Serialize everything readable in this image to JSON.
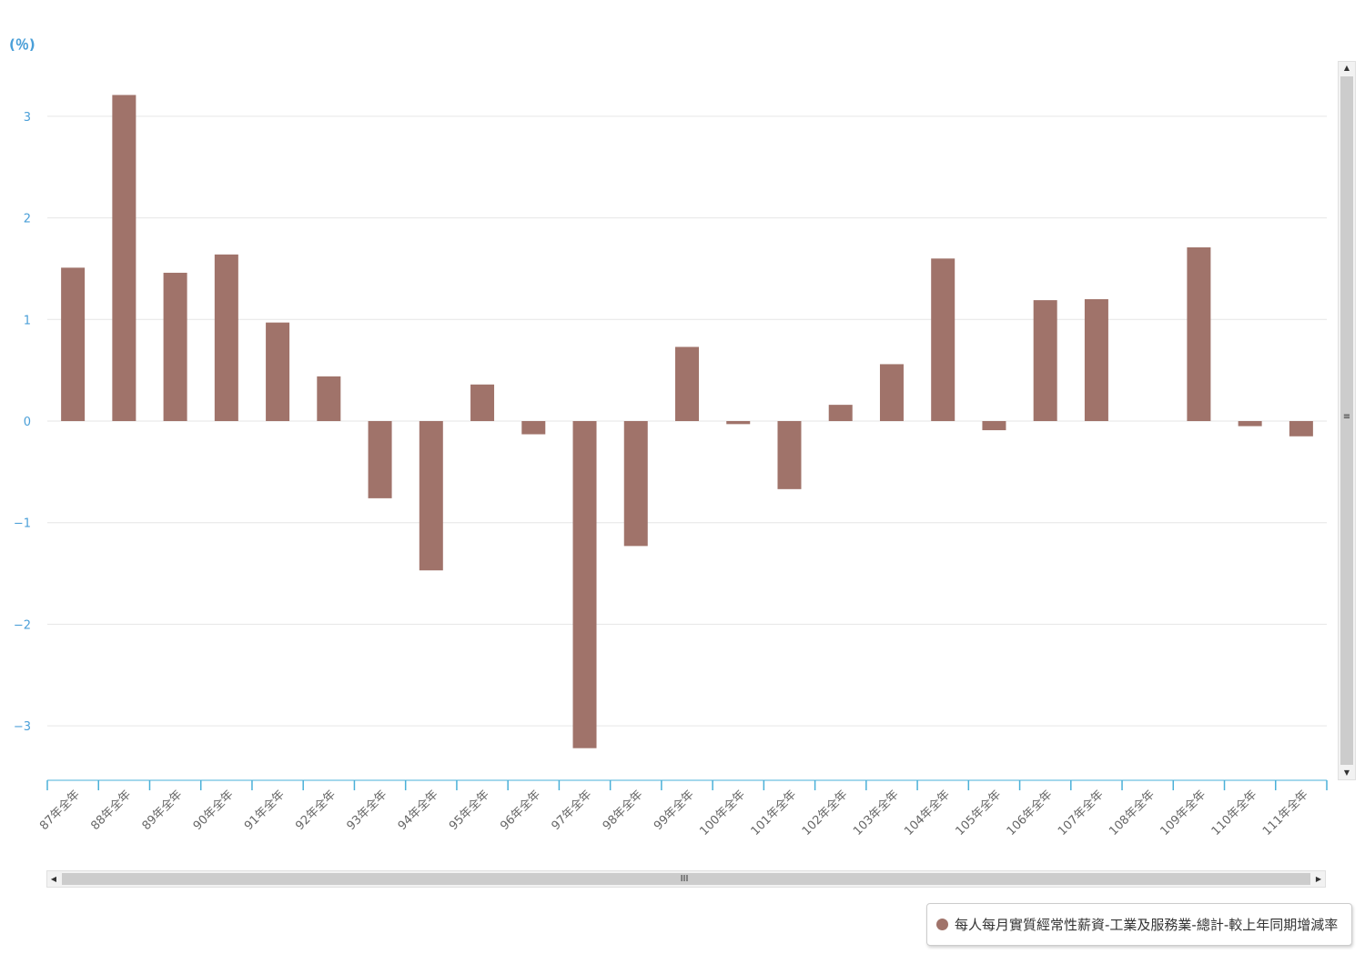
{
  "colors": {
    "bar": "#a0736a",
    "axis_text": "#4a9fd8",
    "axis_line": "#4ab0d8",
    "grid": "#e6e6e6",
    "category_text": "#666666"
  },
  "chart_data": {
    "type": "bar",
    "unit_label": "(％)",
    "categories": [
      "87年全年",
      "88年全年",
      "89年全年",
      "90年全年",
      "91年全年",
      "92年全年",
      "93年全年",
      "94年全年",
      "95年全年",
      "96年全年",
      "97年全年",
      "98年全年",
      "99年全年",
      "100年全年",
      "101年全年",
      "102年全年",
      "103年全年",
      "104年全年",
      "105年全年",
      "106年全年",
      "107年全年",
      "108年全年",
      "109年全年",
      "110年全年",
      "111年全年"
    ],
    "series": [
      {
        "name": "每人每月實質經常性薪資-工業及服務業-總計-較上年同期增減率",
        "values": [
          1.51,
          3.21,
          1.46,
          1.64,
          0.97,
          0.44,
          -0.76,
          -1.47,
          0.36,
          -0.13,
          -3.22,
          -1.23,
          0.73,
          -0.03,
          -0.67,
          0.16,
          0.56,
          1.6,
          -0.09,
          1.19,
          1.2,
          0.0,
          1.71,
          -0.05,
          -0.15
        ]
      }
    ],
    "yticks": [
      3,
      2,
      1,
      0,
      -1,
      -2,
      -3
    ],
    "ytick_labels": [
      "3",
      "2",
      "1",
      "0",
      "−1",
      "−2",
      "−3"
    ],
    "ylim": [
      -3.55,
      3.55
    ],
    "grid": true,
    "legend_position": "bottom-right"
  },
  "scrollbars": {
    "vertical": {
      "up": "▲",
      "down": "▼",
      "grip": "≡"
    },
    "horizontal": {
      "left": "◀",
      "right": "▶",
      "grip": "III"
    }
  }
}
